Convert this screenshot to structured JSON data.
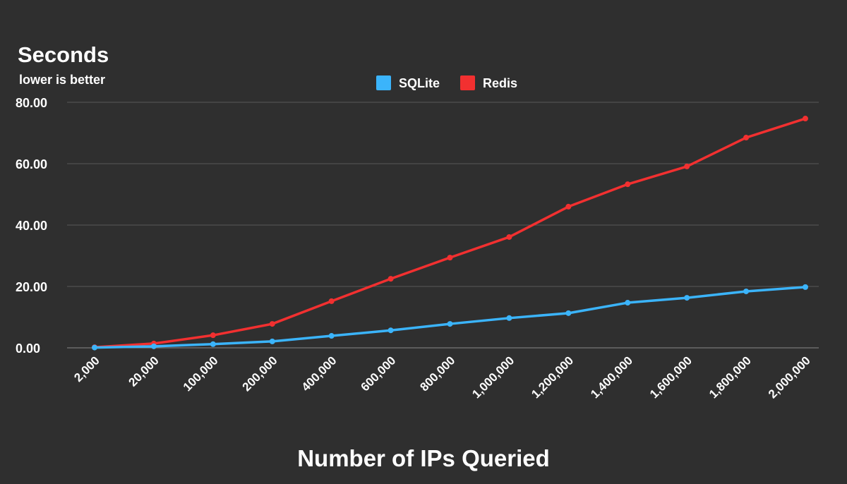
{
  "chart_data": {
    "type": "line",
    "title": "Seconds",
    "subtitle": "lower is better",
    "xlabel": "Number of IPs Queried",
    "ylabel": "Seconds",
    "ylim": [
      0,
      80
    ],
    "yticks": [
      "0.00",
      "20.00",
      "40.00",
      "60.00",
      "80.00"
    ],
    "ytick_values": [
      0,
      20,
      40,
      60,
      80
    ],
    "grid": true,
    "legend_position": "top-center",
    "categories": [
      "2,000",
      "20,000",
      "100,000",
      "200,000",
      "400,000",
      "600,000",
      "800,000",
      "1,000,000",
      "1,200,000",
      "1,400,000",
      "1,600,000",
      "1,800,000",
      "2,000,000"
    ],
    "series": [
      {
        "name": "SQLite",
        "color": "#3bb4fb",
        "values": [
          0.1,
          0.5,
          1.2,
          2.1,
          3.9,
          5.7,
          7.8,
          9.7,
          11.3,
          14.7,
          16.3,
          18.4,
          19.8
        ]
      },
      {
        "name": "Redis",
        "color": "#f23030",
        "values": [
          0.2,
          1.4,
          4.1,
          7.8,
          15.2,
          22.5,
          29.4,
          36.1,
          46.0,
          53.3,
          59.1,
          68.5,
          74.7
        ]
      }
    ]
  }
}
